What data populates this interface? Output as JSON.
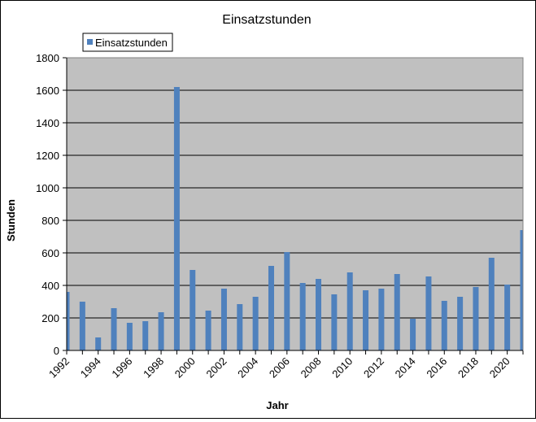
{
  "chart_data": {
    "type": "bar",
    "title": "Einsatzstunden",
    "xlabel": "Jahr",
    "ylabel": "Stunden",
    "ylim": [
      0,
      1800
    ],
    "yticks": [
      0,
      200,
      400,
      600,
      800,
      1000,
      1200,
      1400,
      1600,
      1800
    ],
    "grid": true,
    "legend": {
      "position": "top-left",
      "entries": [
        "Einsatzstunden"
      ]
    },
    "x_tick_labels": [
      "1992",
      "1994",
      "1996",
      "1998",
      "2000",
      "2002",
      "2004",
      "2006",
      "2008",
      "2010",
      "2012",
      "2014",
      "2016",
      "2018",
      "2020"
    ],
    "categories": [
      "1992",
      "1993",
      "1994",
      "1995",
      "1996",
      "1997",
      "1998",
      "1999",
      "2000",
      "2001",
      "2002",
      "2003",
      "2004",
      "2005",
      "2006",
      "2007",
      "2008",
      "2009",
      "2010",
      "2011",
      "2012",
      "2013",
      "2014",
      "2015",
      "2016",
      "2017",
      "2018",
      "2019",
      "2020",
      "2021"
    ],
    "series": [
      {
        "name": "Einsatzstunden",
        "color": "#4f81bd",
        "values": [
          360,
          300,
          80,
          260,
          170,
          180,
          235,
          1620,
          495,
          245,
          380,
          285,
          330,
          520,
          605,
          415,
          440,
          345,
          480,
          370,
          380,
          470,
          195,
          455,
          305,
          330,
          390,
          570,
          405,
          740
        ]
      }
    ],
    "plot_background": "#c0c0c0",
    "grid_color": "#000000"
  }
}
